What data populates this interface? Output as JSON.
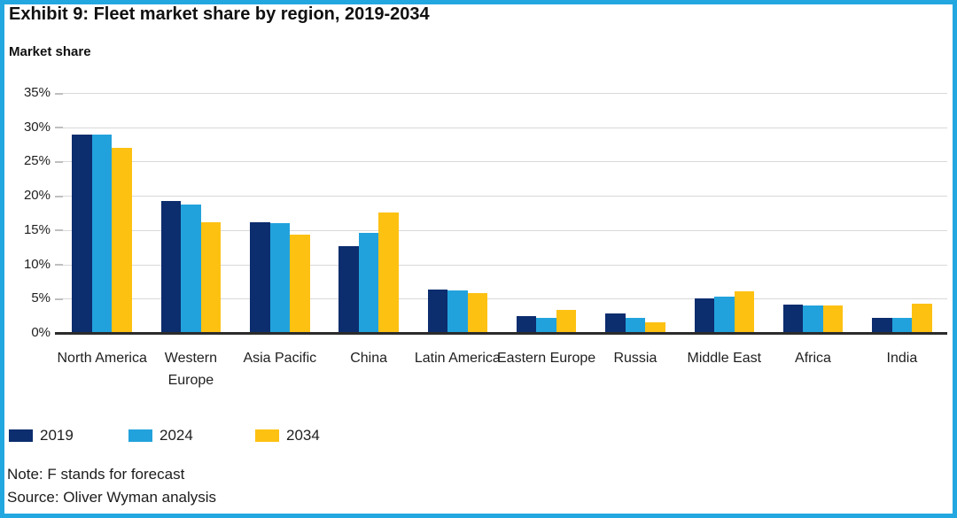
{
  "exhibit": {
    "title": "Exhibit 9: Fleet market share by region, 2019-2034",
    "note": "Note: F stands for forecast",
    "source": "Source: Oliver Wyman analysis"
  },
  "chart_data": {
    "type": "bar",
    "title": "Market share",
    "ylabel": "Market share",
    "categories": [
      "North America",
      "Western Europe",
      "Asia Pacific",
      "China",
      "Latin America",
      "Eastern Europe",
      "Russia",
      "Middle East",
      "Africa",
      "India"
    ],
    "series": [
      {
        "name": "2019",
        "color": "#0c2d6e",
        "values": [
          29.0,
          19.2,
          16.2,
          12.7,
          6.3,
          2.4,
          2.9,
          5.0,
          4.1,
          2.2
        ]
      },
      {
        "name": "2024",
        "color": "#22a2dc",
        "values": [
          29.0,
          18.7,
          16.0,
          14.6,
          6.2,
          2.2,
          2.2,
          5.3,
          4.0,
          2.2
        ]
      },
      {
        "name": "2034",
        "color": "#fdc112",
        "values": [
          27.0,
          16.2,
          14.3,
          17.6,
          5.8,
          3.4,
          1.5,
          6.1,
          4.0,
          4.3
        ]
      }
    ],
    "ylim": [
      0,
      35
    ],
    "yticks": [
      0,
      5,
      10,
      15,
      20,
      25,
      30,
      35
    ],
    "ytick_labels": [
      "0%",
      "5%",
      "10%",
      "15%",
      "20%",
      "25%",
      "30%",
      "35%"
    ],
    "grid": true,
    "legend_position": "bottom-left"
  },
  "colors": {
    "frame_border": "#22a7e0",
    "series_2019": "#0c2d6e",
    "series_2024": "#22a2dc",
    "series_2034": "#fdc112",
    "gridline": "#d9d9d9",
    "axis_line": "#2b2b2b",
    "text": "#1f1f1f"
  }
}
